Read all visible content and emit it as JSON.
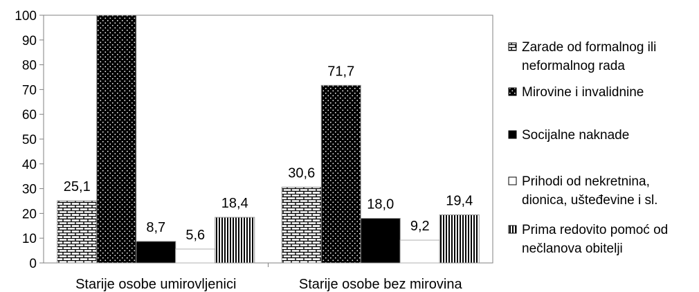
{
  "chart_data": {
    "type": "bar",
    "categories": [
      "Starije osobe umirovljenici",
      "Starije osobe bez mirovina"
    ],
    "series": [
      {
        "name": "Zarade od formalnog ili neformalnog rada",
        "legend_lines": [
          "Zarade od formalnog ili",
          "neformalnog rada"
        ],
        "pattern": "brick",
        "values": [
          25.1,
          30.6
        ],
        "labels": [
          "25,1",
          "30,6"
        ]
      },
      {
        "name": "Mirovine i invalidnine",
        "legend_lines": [
          "Mirovine i invalidnine"
        ],
        "pattern": "dots",
        "values": [
          100,
          71.7
        ],
        "labels": [
          "",
          "71,7"
        ]
      },
      {
        "name": "Socijalne naknade",
        "legend_lines": [
          "Socijalne naknade"
        ],
        "pattern": "solid",
        "values": [
          8.7,
          18.0
        ],
        "labels": [
          "8,7",
          "18,0"
        ]
      },
      {
        "name": "Prihodi od nekretnina, dionica, ušteđevine i sl.",
        "legend_lines": [
          "Prihodi od nekretnina,",
          "dionica, ušteđevine i sl."
        ],
        "pattern": "white",
        "values": [
          5.6,
          9.2
        ],
        "labels": [
          "5,6",
          "9,2"
        ]
      },
      {
        "name": "Prima redovito pomoć od nečlanova obitelji",
        "legend_lines": [
          "Prima redovito pomoć od",
          "nečlanova obitelji"
        ],
        "pattern": "vstripes",
        "values": [
          18.4,
          19.4
        ],
        "labels": [
          "18,4",
          "19,4"
        ]
      }
    ],
    "ylim": [
      0,
      100
    ],
    "yticks": [
      0,
      10,
      20,
      30,
      40,
      50,
      60,
      70,
      80,
      90,
      100
    ],
    "grid": false,
    "legend_position": "right",
    "title": "",
    "xlabel": "",
    "ylabel": ""
  },
  "colors": {
    "axis": "#808080",
    "bar_fill": "#000000",
    "bar_bg": "#ffffff",
    "text": "#000000"
  }
}
